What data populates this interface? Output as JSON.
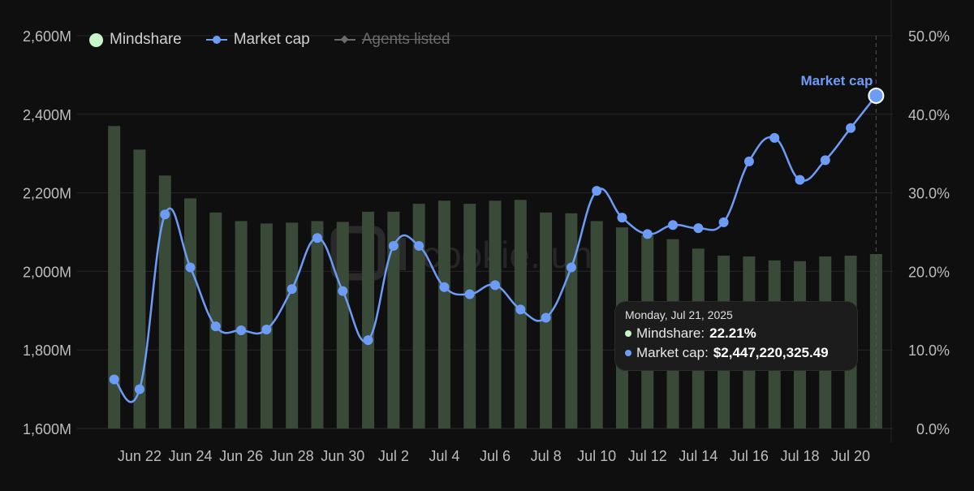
{
  "brand": {
    "watermark": "cookie.fun"
  },
  "legend": [
    {
      "label": "Mindshare",
      "marker": "circle",
      "color": "#c6f7c9",
      "enabled": true
    },
    {
      "label": "Market cap",
      "marker": "line-circle",
      "color": "#6d9cf7",
      "enabled": true
    },
    {
      "label": "Agents listed",
      "marker": "line-diamond",
      "color": "#6a6a6a",
      "enabled": false
    }
  ],
  "tooltip": {
    "date": "Monday, Jul 21, 2025",
    "rows": [
      {
        "label": "Mindshare:",
        "value": "22.21%",
        "color": "#c6f7c9"
      },
      {
        "label": "Market cap:",
        "value": "$2,447,220,325.49",
        "color": "#6d9cf7"
      }
    ]
  },
  "chart_data": {
    "type": "bar+line",
    "title": "",
    "categories": [
      "Jun 21",
      "Jun 22",
      "Jun 23",
      "Jun 24",
      "Jun 25",
      "Jun 26",
      "Jun 27",
      "Jun 28",
      "Jun 29",
      "Jun 30",
      "Jul 1",
      "Jul 2",
      "Jul 3",
      "Jul 4",
      "Jul 5",
      "Jul 6",
      "Jul 7",
      "Jul 8",
      "Jul 9",
      "Jul 10",
      "Jul 11",
      "Jul 12",
      "Jul 13",
      "Jul 14",
      "Jul 15",
      "Jul 16",
      "Jul 17",
      "Jul 18",
      "Jul 19",
      "Jul 20",
      "Jul 21"
    ],
    "x_tick_labels": [
      "Jun 22",
      "Jun 24",
      "Jun 26",
      "Jun 28",
      "Jun 30",
      "Jul 2",
      "Jul 4",
      "Jul 6",
      "Jul 8",
      "Jul 10",
      "Jul 12",
      "Jul 14",
      "Jul 16",
      "Jul 18",
      "Jul 20"
    ],
    "y_left": {
      "ticks": [
        "1,600M",
        "1,800M",
        "2,000M",
        "2,200M",
        "2,400M",
        "2,600M"
      ],
      "range": [
        1600,
        2600
      ],
      "unit": "M"
    },
    "y_right": {
      "ticks": [
        "0.0%",
        "10.0%",
        "20.0%",
        "30.0%",
        "40.0%",
        "50.0%"
      ],
      "range": [
        0,
        50
      ],
      "unit": "%"
    },
    "grid": true,
    "legend_position": "top-left",
    "series": [
      {
        "name": "Mindshare",
        "kind": "bar",
        "axis": "right",
        "color": "#3a4a38",
        "values": [
          38.5,
          35.5,
          32.2,
          29.3,
          27.5,
          26.4,
          26.1,
          26.2,
          26.4,
          26.3,
          27.6,
          27.6,
          28.6,
          29.0,
          28.6,
          29.0,
          29.1,
          27.5,
          27.4,
          26.4,
          25.6,
          24.6,
          24.1,
          22.9,
          22.0,
          21.9,
          21.4,
          21.3,
          21.9,
          22.0,
          22.21
        ]
      },
      {
        "name": "Market cap",
        "kind": "line",
        "axis": "left",
        "color": "#6d9cf7",
        "values": [
          1725,
          1700,
          2145,
          2010,
          1860,
          1850,
          1852,
          1955,
          2085,
          1950,
          1825,
          2065,
          2065,
          1960,
          1942,
          1965,
          1903,
          1882,
          2010,
          2205,
          2137,
          2095,
          2118,
          2110,
          2125,
          2280,
          2340,
          2233,
          2283,
          2365,
          2447.22
        ]
      }
    ],
    "annotation": {
      "label": "Market cap",
      "series": "Market cap",
      "category": "Jul 21"
    }
  }
}
